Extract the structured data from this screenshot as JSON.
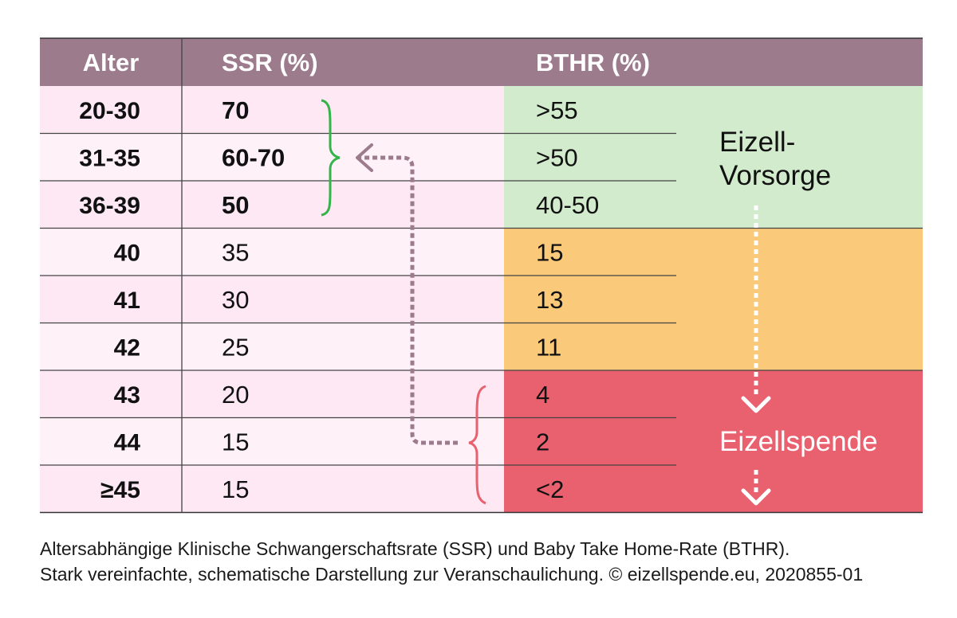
{
  "chart_data": {
    "type": "table",
    "columns": [
      "Alter",
      "SSR (%)",
      "BTHR (%)"
    ],
    "rows": [
      {
        "alter": "20-30",
        "ssr": "70",
        "bthr": ">55",
        "group": "vorsorge",
        "bold": true
      },
      {
        "alter": "31-35",
        "ssr": "60-70",
        "bthr": ">50",
        "group": "vorsorge",
        "bold": true
      },
      {
        "alter": "36-39",
        "ssr": "50",
        "bthr": "40-50",
        "group": "vorsorge",
        "bold": true
      },
      {
        "alter": "40",
        "ssr": "35",
        "bthr": "15",
        "group": "mid",
        "bold": false
      },
      {
        "alter": "41",
        "ssr": "30",
        "bthr": "13",
        "group": "mid",
        "bold": false
      },
      {
        "alter": "42",
        "ssr": "25",
        "bthr": "11",
        "group": "mid",
        "bold": false
      },
      {
        "alter": "43",
        "ssr": "20",
        "bthr": "4",
        "group": "spende",
        "bold": false
      },
      {
        "alter": "44",
        "ssr": "15",
        "bthr": "2",
        "group": "spende",
        "bold": false
      },
      {
        "alter": "≥45",
        "ssr": "15",
        "bthr": "<2",
        "group": "spende",
        "bold": false
      }
    ],
    "annotations": {
      "vorsorge_line1": "Eizell-",
      "vorsorge_line2": "Vorsorge",
      "spende": "Eizellspende"
    },
    "colors": {
      "header": "#9c7b8d",
      "row_a": "#fde8f3",
      "row_b": "#fff1f8",
      "vorsorge": "#d2ebcc",
      "mid": "#fbc97a",
      "spende": "#e9606e",
      "brace_green": "#33b44a",
      "brace_red": "#e9606e",
      "dotted_arrow": "#9c7b8d"
    }
  },
  "caption": {
    "line1": "Altersabhängige Klinische Schwangerschaftsrate (SSR) und Baby Take Home-Rate (BTHR).",
    "line2": "Stark vereinfachte, schematische Darstellung zur Veranschaulichung. © eizellspende.eu, 2020855-01"
  }
}
